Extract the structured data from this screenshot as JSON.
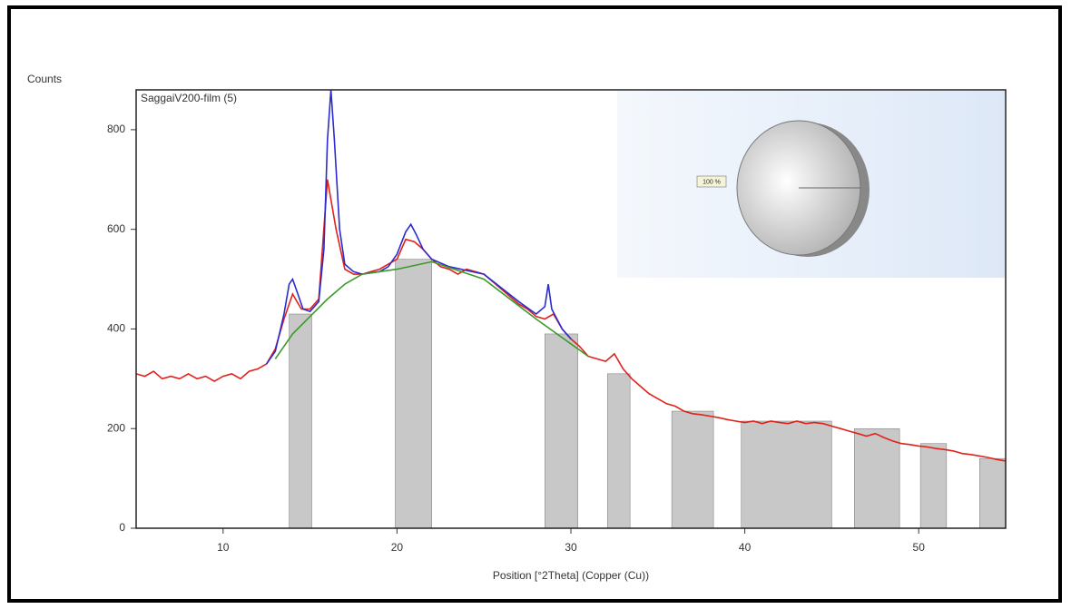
{
  "chart_data": [
    {
      "type": "line",
      "sample_label": "SaggaiV200-film (5)",
      "y_label": "Counts",
      "x_label": "Position [°2Theta] (Copper (Cu))",
      "xlim": [
        5,
        55
      ],
      "ylim": [
        0,
        880
      ],
      "xticks": [
        10,
        20,
        30,
        40,
        50
      ],
      "yticks": [
        0,
        200,
        400,
        600,
        800
      ],
      "series": [
        {
          "color": "#e0221b",
          "x": [
            5,
            5.5,
            6,
            6.5,
            7,
            7.5,
            8,
            8.5,
            9,
            9.5,
            10,
            10.5,
            11,
            11.5,
            12,
            12.5,
            13,
            13.5,
            14,
            14.5,
            15,
            15.5,
            16,
            16.5,
            17,
            17.5,
            18,
            18.5,
            19,
            19.5,
            20,
            20.5,
            21,
            21.5,
            22,
            22.5,
            23,
            23.5,
            24,
            24.5,
            25,
            25.5,
            26,
            26.5,
            27,
            27.5,
            28,
            28.5,
            29,
            29.5,
            30,
            30.5,
            31,
            31.5,
            32,
            32.5,
            33,
            33.5,
            34,
            34.5,
            35,
            35.5,
            36,
            36.5,
            37,
            37.5,
            38,
            38.5,
            39,
            39.5,
            40,
            40.5,
            41,
            41.5,
            42,
            42.5,
            43,
            43.5,
            44,
            44.5,
            45,
            45.5,
            46,
            46.5,
            47,
            47.5,
            48,
            48.5,
            49,
            49.5,
            50,
            50.5,
            51,
            51.5,
            52,
            52.5,
            53,
            53.5,
            54,
            54.5,
            55
          ],
          "values": [
            310,
            305,
            315,
            300,
            305,
            300,
            310,
            300,
            305,
            295,
            305,
            310,
            300,
            315,
            320,
            330,
            360,
            420,
            470,
            440,
            440,
            460,
            700,
            600,
            520,
            510,
            510,
            515,
            520,
            530,
            540,
            580,
            575,
            560,
            540,
            525,
            520,
            510,
            520,
            515,
            510,
            495,
            480,
            465,
            450,
            440,
            425,
            420,
            430,
            400,
            380,
            365,
            345,
            340,
            335,
            350,
            320,
            300,
            285,
            270,
            260,
            250,
            245,
            235,
            230,
            228,
            225,
            222,
            218,
            215,
            212,
            215,
            210,
            215,
            212,
            210,
            215,
            210,
            212,
            210,
            205,
            200,
            195,
            190,
            185,
            190,
            182,
            175,
            170,
            168,
            165,
            163,
            160,
            158,
            155,
            150,
            148,
            145,
            142,
            138,
            135
          ]
        },
        {
          "color": "#2b2bd0",
          "x": [
            12.5,
            13,
            13.5,
            13.8,
            14,
            14.3,
            14.6,
            15,
            15.5,
            15.8,
            16,
            16.2,
            16.4,
            16.7,
            17,
            17.5,
            18,
            19,
            19.5,
            20,
            20.5,
            20.8,
            21.1,
            21.5,
            22,
            23,
            25,
            27,
            28,
            28.5,
            28.7,
            28.9,
            29.5,
            30
          ],
          "values": [
            330,
            355,
            430,
            490,
            500,
            470,
            440,
            435,
            455,
            560,
            780,
            880,
            780,
            600,
            530,
            515,
            510,
            515,
            525,
            550,
            595,
            610,
            590,
            560,
            540,
            525,
            510,
            455,
            430,
            445,
            490,
            440,
            400,
            380
          ]
        },
        {
          "color": "#3a9a2a",
          "x": [
            13,
            14,
            15,
            16,
            17,
            18,
            20,
            22,
            25,
            28,
            31
          ],
          "values": [
            340,
            390,
            425,
            460,
            490,
            510,
            520,
            535,
            500,
            420,
            345
          ]
        }
      ],
      "bars": {
        "color": "#c8c8c8",
        "x_start": [
          13.8,
          19.9,
          28.5,
          32.1,
          35.8,
          39.8,
          46.3,
          50.1,
          53.5
        ],
        "x_end": [
          15.1,
          22.0,
          30.4,
          33.4,
          38.2,
          45.0,
          48.9,
          51.6,
          55
        ],
        "values": [
          430,
          540,
          390,
          310,
          235,
          215,
          200,
          170,
          140
        ]
      }
    },
    {
      "type": "pie",
      "values": [
        100
      ],
      "value_labels": [
        "100 %"
      ],
      "color": "#c9c9c9"
    }
  ]
}
